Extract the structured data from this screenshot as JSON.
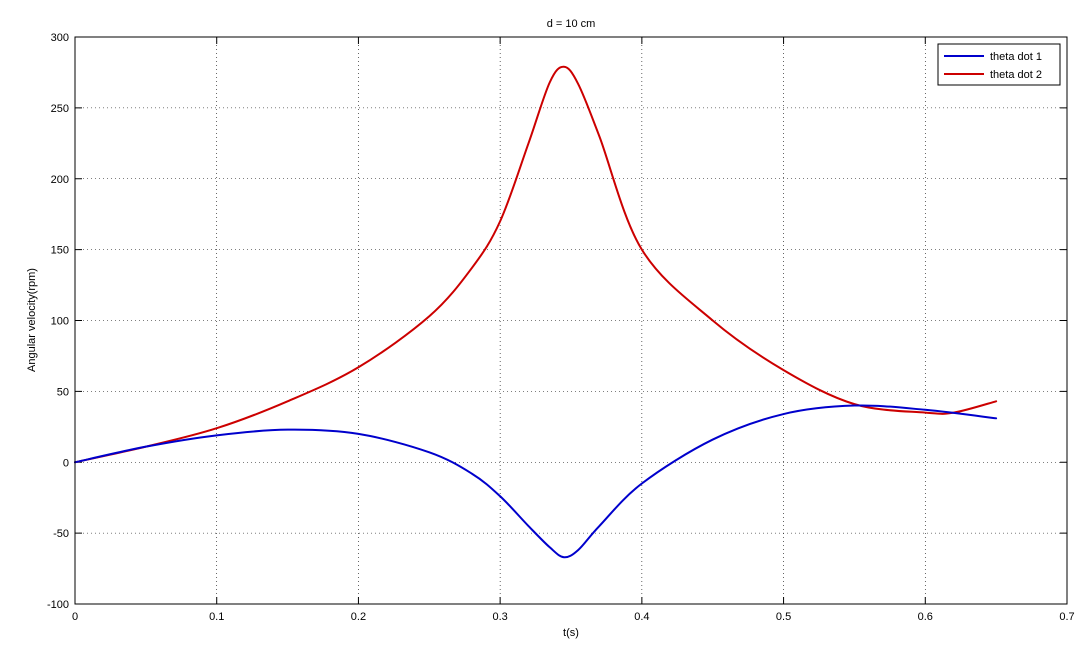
{
  "chart_data": {
    "type": "line",
    "title": "d = 10 cm",
    "xlabel": "t(s)",
    "ylabel": "Angular velocity(rpm)",
    "xlim": [
      0,
      0.7
    ],
    "ylim": [
      -100,
      300
    ],
    "xticks": [
      "0",
      "0.1",
      "0.2",
      "0.3",
      "0.4",
      "0.5",
      "0.6",
      "0.7"
    ],
    "yticks": [
      "-100",
      "-50",
      "0",
      "50",
      "100",
      "150",
      "200",
      "250",
      "300"
    ],
    "grid": true,
    "legend_position": "top-right",
    "series": [
      {
        "name": "theta dot 1",
        "color": "#0000cc",
        "x": [
          0,
          0.05,
          0.1,
          0.15,
          0.2,
          0.25,
          0.28,
          0.3,
          0.32,
          0.335,
          0.345,
          0.355,
          0.37,
          0.4,
          0.45,
          0.5,
          0.55,
          0.6,
          0.65
        ],
        "y": [
          0,
          11,
          19,
          23,
          20,
          7,
          -8,
          -24,
          -45,
          -60,
          -67,
          -62,
          -45,
          -15,
          16,
          34,
          40,
          37,
          31
        ]
      },
      {
        "name": "theta dot 2",
        "color": "#cc0000",
        "x": [
          0,
          0.05,
          0.1,
          0.15,
          0.2,
          0.25,
          0.28,
          0.3,
          0.32,
          0.335,
          0.345,
          0.355,
          0.37,
          0.4,
          0.45,
          0.5,
          0.55,
          0.6,
          0.62,
          0.65
        ],
        "y": [
          0,
          11,
          24,
          43,
          67,
          103,
          137,
          170,
          225,
          268,
          279,
          267,
          230,
          150,
          100,
          65,
          41,
          35,
          35,
          43
        ]
      }
    ]
  }
}
